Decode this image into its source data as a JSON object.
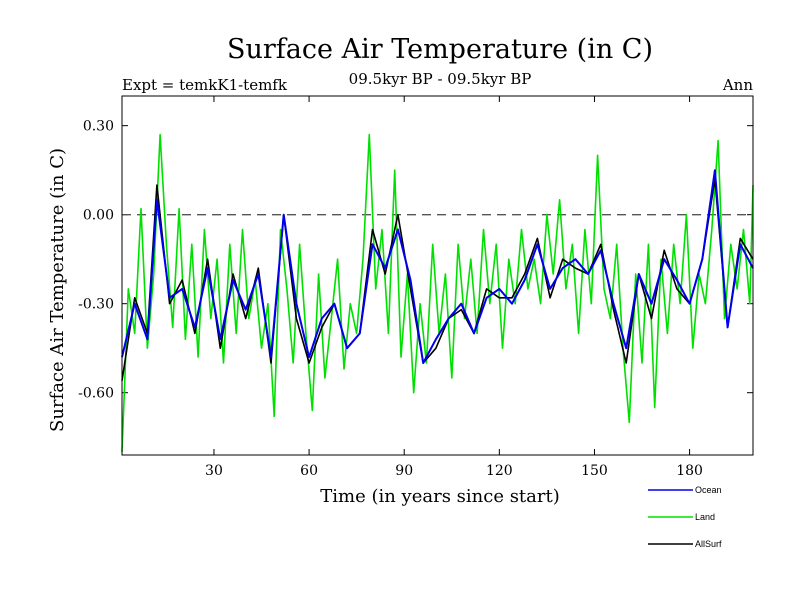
{
  "chart_data": {
    "type": "line",
    "title": "Surface Air Temperature (in C)",
    "subtitle_left": "Expt = temkK1-temfk",
    "subtitle_center": "09.5kyr BP - 09.5kyr BP",
    "subtitle_right": "Ann",
    "xlabel": "Time (in years since start)",
    "ylabel": "Surface Air Temperature (in C)",
    "xlim": [
      1,
      200
    ],
    "ylim": [
      -0.81,
      0.4
    ],
    "xticks": [
      30,
      60,
      90,
      120,
      150,
      180
    ],
    "xtick_labels": [
      "30",
      "60",
      "90",
      "120",
      "150",
      "180"
    ],
    "yticks": [
      0.3,
      0.0,
      -0.3,
      -0.6
    ],
    "ytick_labels": [
      "0.30",
      "0.00",
      "-0.30",
      "-0.60"
    ],
    "reference_line": 0.0,
    "legend_position": "bottom-right",
    "series": [
      {
        "name": "Ocean",
        "color": "#0000ee",
        "x": [
          1,
          5,
          9,
          12,
          16,
          20,
          24,
          28,
          32,
          36,
          40,
          44,
          48,
          52,
          56,
          60,
          64,
          68,
          72,
          76,
          80,
          84,
          88,
          92,
          96,
          100,
          104,
          108,
          112,
          116,
          120,
          124,
          128,
          132,
          136,
          140,
          144,
          148,
          152,
          156,
          160,
          164,
          168,
          172,
          176,
          180,
          184,
          188,
          192,
          196,
          200
        ],
        "values": [
          -0.48,
          -0.3,
          -0.42,
          0.05,
          -0.28,
          -0.25,
          -0.38,
          -0.18,
          -0.42,
          -0.22,
          -0.32,
          -0.2,
          -0.48,
          0.0,
          -0.3,
          -0.48,
          -0.35,
          -0.3,
          -0.45,
          -0.4,
          -0.1,
          -0.18,
          -0.05,
          -0.22,
          -0.5,
          -0.42,
          -0.35,
          -0.3,
          -0.4,
          -0.28,
          -0.25,
          -0.3,
          -0.22,
          -0.1,
          -0.25,
          -0.18,
          -0.15,
          -0.2,
          -0.12,
          -0.3,
          -0.45,
          -0.2,
          -0.3,
          -0.15,
          -0.22,
          -0.3,
          -0.15,
          0.15,
          -0.38,
          -0.1,
          -0.18
        ]
      },
      {
        "name": "Land",
        "color": "#00e000",
        "x": [
          1,
          3,
          5,
          7,
          9,
          11,
          13,
          15,
          17,
          19,
          21,
          23,
          25,
          27,
          29,
          31,
          33,
          35,
          37,
          39,
          41,
          43,
          45,
          47,
          49,
          51,
          53,
          55,
          57,
          59,
          61,
          63,
          65,
          67,
          69,
          71,
          73,
          75,
          77,
          79,
          81,
          83,
          85,
          87,
          89,
          91,
          93,
          95,
          97,
          99,
          101,
          103,
          105,
          107,
          109,
          111,
          113,
          115,
          117,
          119,
          121,
          123,
          125,
          127,
          129,
          131,
          133,
          135,
          137,
          139,
          141,
          143,
          145,
          147,
          149,
          151,
          153,
          155,
          157,
          159,
          161,
          163,
          165,
          167,
          169,
          171,
          173,
          175,
          177,
          179,
          181,
          183,
          185,
          187,
          189,
          191,
          193,
          195,
          197,
          199,
          200
        ],
        "values": [
          -0.8,
          -0.25,
          -0.4,
          0.02,
          -0.45,
          -0.2,
          0.27,
          -0.1,
          -0.38,
          0.02,
          -0.42,
          -0.1,
          -0.48,
          -0.05,
          -0.35,
          -0.15,
          -0.5,
          -0.1,
          -0.4,
          -0.05,
          -0.35,
          -0.22,
          -0.45,
          -0.3,
          -0.68,
          -0.05,
          -0.25,
          -0.5,
          -0.1,
          -0.4,
          -0.66,
          -0.2,
          -0.55,
          -0.35,
          -0.15,
          -0.52,
          -0.3,
          -0.4,
          -0.15,
          0.27,
          -0.25,
          -0.05,
          -0.4,
          0.15,
          -0.48,
          -0.2,
          -0.6,
          -0.3,
          -0.5,
          -0.1,
          -0.4,
          -0.2,
          -0.55,
          -0.1,
          -0.35,
          -0.15,
          -0.4,
          -0.05,
          -0.3,
          -0.1,
          -0.45,
          -0.15,
          -0.3,
          -0.05,
          -0.25,
          -0.15,
          -0.3,
          0.0,
          -0.2,
          0.05,
          -0.25,
          -0.1,
          -0.4,
          -0.05,
          -0.3,
          0.2,
          -0.25,
          -0.35,
          -0.1,
          -0.45,
          -0.7,
          -0.2,
          -0.5,
          -0.1,
          -0.65,
          -0.15,
          -0.4,
          -0.1,
          -0.3,
          0.0,
          -0.45,
          -0.2,
          -0.3,
          -0.05,
          0.25,
          -0.35,
          -0.1,
          -0.25,
          -0.05,
          -0.3,
          0.1
        ]
      },
      {
        "name": "AllSurf",
        "color": "#000000",
        "x": [
          1,
          5,
          9,
          12,
          16,
          20,
          24,
          28,
          32,
          36,
          40,
          44,
          48,
          52,
          56,
          60,
          64,
          68,
          72,
          76,
          80,
          84,
          88,
          92,
          96,
          100,
          104,
          108,
          112,
          116,
          120,
          124,
          128,
          132,
          136,
          140,
          144,
          148,
          152,
          156,
          160,
          164,
          168,
          172,
          176,
          180,
          184,
          188,
          192,
          196,
          200
        ],
        "values": [
          -0.56,
          -0.28,
          -0.4,
          0.1,
          -0.3,
          -0.22,
          -0.4,
          -0.15,
          -0.45,
          -0.2,
          -0.35,
          -0.18,
          -0.5,
          0.0,
          -0.35,
          -0.5,
          -0.38,
          -0.3,
          -0.45,
          -0.4,
          -0.05,
          -0.2,
          0.0,
          -0.25,
          -0.5,
          -0.45,
          -0.35,
          -0.32,
          -0.4,
          -0.25,
          -0.28,
          -0.28,
          -0.2,
          -0.08,
          -0.28,
          -0.15,
          -0.18,
          -0.2,
          -0.1,
          -0.32,
          -0.5,
          -0.2,
          -0.35,
          -0.12,
          -0.25,
          -0.3,
          -0.15,
          0.12,
          -0.38,
          -0.08,
          -0.15
        ]
      }
    ]
  }
}
